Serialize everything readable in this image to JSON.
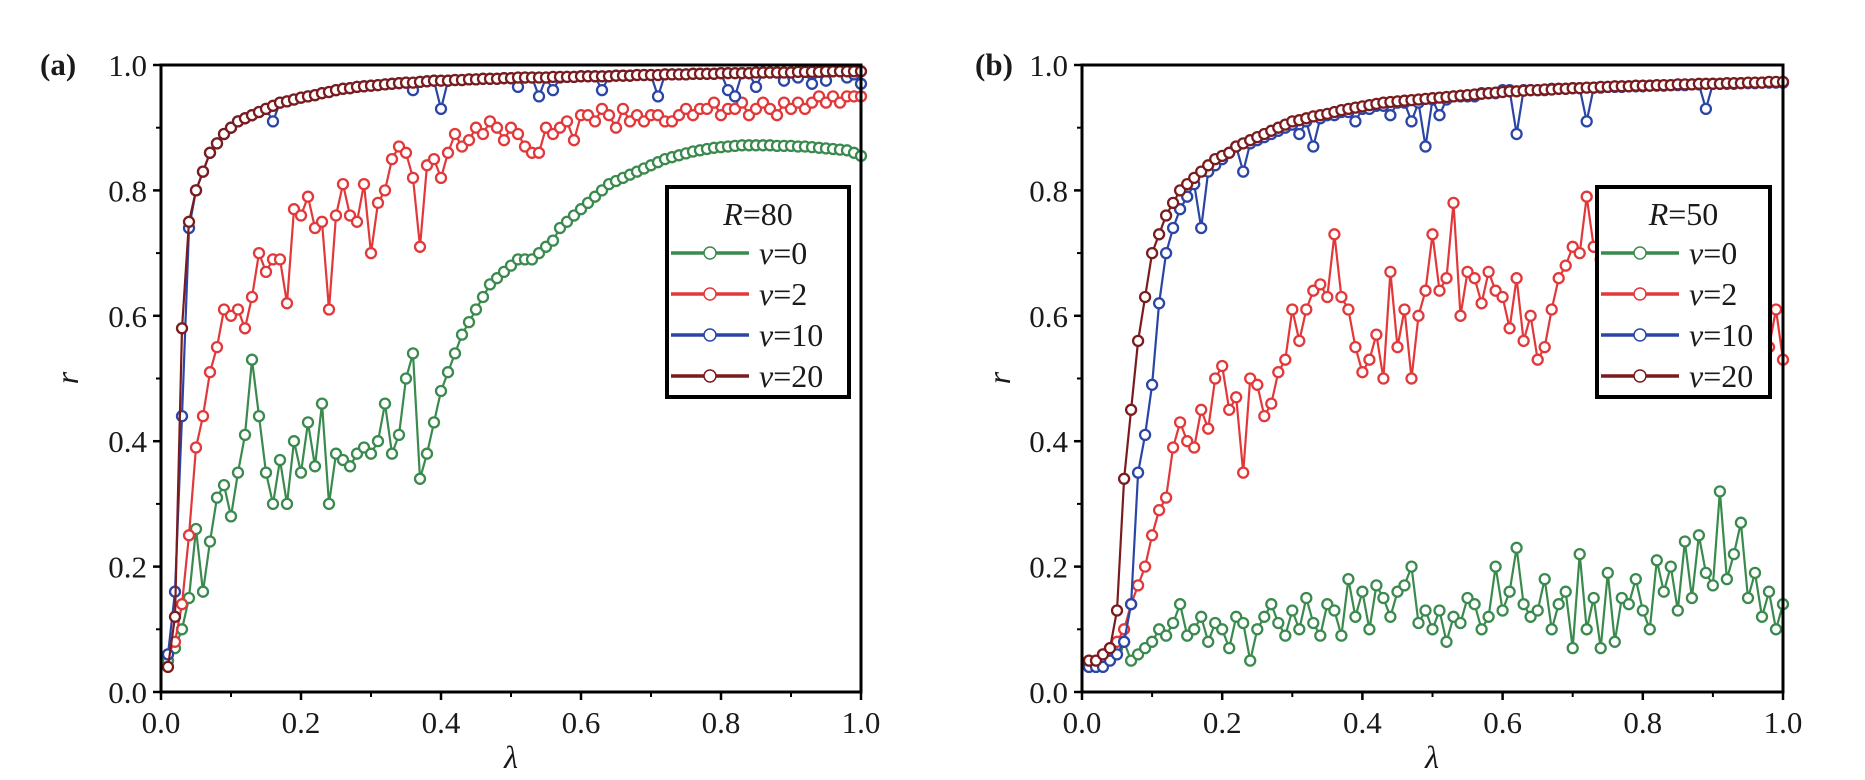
{
  "chart_data": [
    {
      "type": "line",
      "panel_label": "(a)",
      "title": "",
      "xlabel": "λ",
      "ylabel": "r",
      "xlim": [
        0.0,
        1.0
      ],
      "ylim": [
        0.0,
        1.0
      ],
      "xticks": [
        "0.0",
        "0.2",
        "0.4",
        "0.6",
        "0.8",
        "1.0"
      ],
      "yticks": [
        "0.0",
        "0.2",
        "0.4",
        "0.6",
        "0.8",
        "1.0"
      ],
      "grid": false,
      "legend": {
        "title_var": "R",
        "title_value": "=80",
        "placement": "center-right"
      },
      "x_step": 0.01,
      "x_start": 0.01,
      "series": [
        {
          "name": "v=0",
          "var": "v",
          "value": "=0",
          "color": "#3a8a4e",
          "values": [
            0.05,
            0.07,
            0.1,
            0.15,
            0.26,
            0.16,
            0.24,
            0.31,
            0.33,
            0.28,
            0.35,
            0.41,
            0.53,
            0.44,
            0.35,
            0.3,
            0.37,
            0.3,
            0.4,
            0.35,
            0.43,
            0.36,
            0.46,
            0.3,
            0.38,
            0.37,
            0.36,
            0.38,
            0.39,
            0.38,
            0.4,
            0.46,
            0.38,
            0.41,
            0.5,
            0.54,
            0.34,
            0.38,
            0.43,
            0.48,
            0.51,
            0.54,
            0.57,
            0.59,
            0.61,
            0.63,
            0.65,
            0.66,
            0.67,
            0.68,
            0.69,
            0.69,
            0.69,
            0.7,
            0.71,
            0.72,
            0.74,
            0.75,
            0.76,
            0.77,
            0.78,
            0.79,
            0.8,
            0.81,
            0.815,
            0.82,
            0.825,
            0.83,
            0.835,
            0.84,
            0.845,
            0.85,
            0.853,
            0.856,
            0.859,
            0.862,
            0.864,
            0.866,
            0.868,
            0.869,
            0.87,
            0.871,
            0.872,
            0.872,
            0.872,
            0.872,
            0.872,
            0.871,
            0.871,
            0.871,
            0.87,
            0.87,
            0.869,
            0.868,
            0.867,
            0.866,
            0.865,
            0.864,
            0.86,
            0.855
          ]
        },
        {
          "name": "v=2",
          "var": "v",
          "value": "=2",
          "color": "#e2383a",
          "values": [
            0.06,
            0.08,
            0.14,
            0.25,
            0.39,
            0.44,
            0.51,
            0.55,
            0.61,
            0.6,
            0.61,
            0.58,
            0.63,
            0.7,
            0.67,
            0.69,
            0.69,
            0.62,
            0.77,
            0.76,
            0.79,
            0.74,
            0.75,
            0.61,
            0.76,
            0.81,
            0.76,
            0.75,
            0.81,
            0.7,
            0.78,
            0.8,
            0.85,
            0.87,
            0.86,
            0.82,
            0.71,
            0.84,
            0.85,
            0.82,
            0.86,
            0.89,
            0.87,
            0.88,
            0.9,
            0.89,
            0.91,
            0.9,
            0.88,
            0.9,
            0.89,
            0.87,
            0.86,
            0.86,
            0.9,
            0.89,
            0.9,
            0.91,
            0.88,
            0.92,
            0.92,
            0.91,
            0.93,
            0.92,
            0.9,
            0.93,
            0.91,
            0.92,
            0.91,
            0.92,
            0.92,
            0.91,
            0.91,
            0.92,
            0.93,
            0.92,
            0.93,
            0.93,
            0.94,
            0.92,
            0.93,
            0.93,
            0.94,
            0.92,
            0.93,
            0.94,
            0.93,
            0.92,
            0.94,
            0.93,
            0.94,
            0.93,
            0.94,
            0.95,
            0.94,
            0.95,
            0.94,
            0.95,
            0.95,
            0.95
          ]
        },
        {
          "name": "v=10",
          "var": "v",
          "value": "=10",
          "color": "#2b45a6",
          "values": [
            0.06,
            0.16,
            0.44,
            0.74,
            0.8,
            0.83,
            0.86,
            0.875,
            0.89,
            0.9,
            0.91,
            0.915,
            0.92,
            0.925,
            0.93,
            0.91,
            0.94,
            0.942,
            0.945,
            0.948,
            0.95,
            0.952,
            0.955,
            0.957,
            0.96,
            0.962,
            0.963,
            0.965,
            0.966,
            0.967,
            0.968,
            0.969,
            0.97,
            0.971,
            0.972,
            0.96,
            0.973,
            0.974,
            0.975,
            0.93,
            0.975,
            0.976,
            0.976,
            0.977,
            0.977,
            0.978,
            0.978,
            0.978,
            0.979,
            0.979,
            0.965,
            0.98,
            0.98,
            0.95,
            0.98,
            0.96,
            0.98,
            0.981,
            0.981,
            0.982,
            0.982,
            0.982,
            0.96,
            0.982,
            0.983,
            0.983,
            0.983,
            0.984,
            0.984,
            0.984,
            0.95,
            0.985,
            0.985,
            0.985,
            0.985,
            0.986,
            0.986,
            0.986,
            0.986,
            0.987,
            0.96,
            0.95,
            0.987,
            0.987,
            0.965,
            0.988,
            0.988,
            0.988,
            0.975,
            0.988,
            0.98,
            0.989,
            0.97,
            0.989,
            0.975,
            0.99,
            0.99,
            0.98,
            0.985,
            0.97
          ]
        },
        {
          "name": "v=20",
          "var": "v",
          "value": "=20",
          "color": "#7a1c1e",
          "values": [
            0.04,
            0.12,
            0.58,
            0.75,
            0.8,
            0.83,
            0.86,
            0.875,
            0.89,
            0.9,
            0.91,
            0.915,
            0.92,
            0.925,
            0.93,
            0.935,
            0.94,
            0.942,
            0.945,
            0.948,
            0.95,
            0.952,
            0.955,
            0.957,
            0.96,
            0.962,
            0.963,
            0.965,
            0.966,
            0.967,
            0.968,
            0.969,
            0.97,
            0.971,
            0.972,
            0.972,
            0.973,
            0.974,
            0.975,
            0.975,
            0.975,
            0.976,
            0.976,
            0.977,
            0.977,
            0.978,
            0.978,
            0.978,
            0.979,
            0.979,
            0.98,
            0.98,
            0.98,
            0.98,
            0.98,
            0.981,
            0.981,
            0.981,
            0.981,
            0.982,
            0.982,
            0.982,
            0.982,
            0.982,
            0.983,
            0.983,
            0.983,
            0.984,
            0.984,
            0.984,
            0.984,
            0.985,
            0.985,
            0.985,
            0.985,
            0.986,
            0.986,
            0.986,
            0.986,
            0.987,
            0.987,
            0.987,
            0.987,
            0.987,
            0.988,
            0.988,
            0.988,
            0.988,
            0.988,
            0.988,
            0.989,
            0.989,
            0.989,
            0.989,
            0.99,
            0.99,
            0.99,
            0.99,
            0.99,
            0.99
          ]
        }
      ]
    },
    {
      "type": "line",
      "panel_label": "(b)",
      "title": "",
      "xlabel": "λ",
      "ylabel": "r",
      "xlim": [
        0.0,
        1.0
      ],
      "ylim": [
        0.0,
        1.0
      ],
      "xticks": [
        "0.0",
        "0.2",
        "0.4",
        "0.6",
        "0.8",
        "1.0"
      ],
      "yticks": [
        "0.0",
        "0.2",
        "0.4",
        "0.6",
        "0.8",
        "1.0"
      ],
      "grid": false,
      "legend": {
        "title_var": "R",
        "title_value": "=50",
        "placement": "center-right"
      },
      "x_step": 0.01,
      "x_start": 0.01,
      "series": [
        {
          "name": "v=0",
          "var": "v",
          "value": "=0",
          "color": "#3a8a4e",
          "values": [
            0.04,
            0.04,
            0.05,
            0.06,
            0.07,
            0.08,
            0.05,
            0.06,
            0.07,
            0.08,
            0.1,
            0.09,
            0.11,
            0.14,
            0.09,
            0.1,
            0.12,
            0.08,
            0.11,
            0.1,
            0.07,
            0.12,
            0.11,
            0.05,
            0.1,
            0.12,
            0.14,
            0.11,
            0.09,
            0.13,
            0.1,
            0.15,
            0.11,
            0.09,
            0.14,
            0.13,
            0.09,
            0.18,
            0.12,
            0.16,
            0.1,
            0.17,
            0.15,
            0.12,
            0.16,
            0.17,
            0.2,
            0.11,
            0.13,
            0.1,
            0.13,
            0.08,
            0.12,
            0.11,
            0.15,
            0.14,
            0.1,
            0.12,
            0.2,
            0.13,
            0.16,
            0.23,
            0.14,
            0.12,
            0.13,
            0.18,
            0.1,
            0.14,
            0.16,
            0.07,
            0.22,
            0.1,
            0.15,
            0.07,
            0.19,
            0.08,
            0.15,
            0.14,
            0.18,
            0.13,
            0.1,
            0.21,
            0.16,
            0.2,
            0.13,
            0.24,
            0.15,
            0.25,
            0.19,
            0.17,
            0.32,
            0.18,
            0.22,
            0.27,
            0.15,
            0.19,
            0.12,
            0.16,
            0.1,
            0.14
          ]
        },
        {
          "name": "v=2",
          "var": "v",
          "value": "=2",
          "color": "#e2383a",
          "values": [
            0.05,
            0.05,
            0.06,
            0.07,
            0.08,
            0.1,
            0.14,
            0.17,
            0.2,
            0.25,
            0.29,
            0.31,
            0.39,
            0.43,
            0.4,
            0.39,
            0.45,
            0.42,
            0.5,
            0.52,
            0.45,
            0.47,
            0.35,
            0.5,
            0.49,
            0.44,
            0.46,
            0.51,
            0.53,
            0.61,
            0.56,
            0.61,
            0.64,
            0.65,
            0.63,
            0.73,
            0.63,
            0.61,
            0.55,
            0.51,
            0.53,
            0.57,
            0.5,
            0.67,
            0.55,
            0.61,
            0.5,
            0.6,
            0.64,
            0.73,
            0.64,
            0.66,
            0.78,
            0.6,
            0.67,
            0.66,
            0.62,
            0.67,
            0.64,
            0.63,
            0.58,
            0.66,
            0.56,
            0.6,
            0.53,
            0.55,
            0.61,
            0.66,
            0.68,
            0.71,
            0.7,
            0.79,
            0.71,
            0.69,
            0.66,
            0.64,
            0.62,
            0.63,
            0.6,
            0.61,
            0.6,
            0.62,
            0.59,
            0.6,
            0.58,
            0.57,
            0.55,
            0.56,
            0.58,
            0.57,
            0.55,
            0.54,
            0.56,
            0.6,
            0.57,
            0.56,
            0.62,
            0.55,
            0.61,
            0.53
          ]
        },
        {
          "name": "v=10",
          "var": "v",
          "value": "=10",
          "color": "#2b45a6",
          "values": [
            0.04,
            0.04,
            0.04,
            0.05,
            0.06,
            0.08,
            0.14,
            0.35,
            0.41,
            0.49,
            0.62,
            0.7,
            0.74,
            0.77,
            0.79,
            0.81,
            0.74,
            0.83,
            0.84,
            0.85,
            0.86,
            0.87,
            0.83,
            0.875,
            0.88,
            0.885,
            0.89,
            0.895,
            0.9,
            0.905,
            0.89,
            0.91,
            0.87,
            0.915,
            0.92,
            0.92,
            0.925,
            0.925,
            0.91,
            0.93,
            0.93,
            0.935,
            0.935,
            0.92,
            0.94,
            0.94,
            0.91,
            0.94,
            0.87,
            0.945,
            0.92,
            0.945,
            0.95,
            0.95,
            0.95,
            0.95,
            0.955,
            0.955,
            0.955,
            0.96,
            0.96,
            0.89,
            0.96,
            0.96,
            0.96,
            0.96,
            0.962,
            0.962,
            0.962,
            0.963,
            0.963,
            0.91,
            0.964,
            0.964,
            0.965,
            0.965,
            0.965,
            0.966,
            0.966,
            0.966,
            0.967,
            0.967,
            0.967,
            0.968,
            0.968,
            0.968,
            0.969,
            0.969,
            0.93,
            0.97,
            0.97,
            0.97,
            0.97,
            0.971,
            0.971,
            0.971,
            0.972,
            0.972,
            0.972,
            0.972
          ]
        },
        {
          "name": "v=20",
          "var": "v",
          "value": "=20",
          "color": "#7a1c1e",
          "values": [
            0.05,
            0.05,
            0.06,
            0.07,
            0.13,
            0.34,
            0.45,
            0.56,
            0.63,
            0.7,
            0.73,
            0.76,
            0.78,
            0.8,
            0.81,
            0.82,
            0.83,
            0.84,
            0.85,
            0.855,
            0.86,
            0.87,
            0.875,
            0.88,
            0.885,
            0.89,
            0.895,
            0.9,
            0.905,
            0.91,
            0.912,
            0.915,
            0.918,
            0.92,
            0.922,
            0.925,
            0.928,
            0.93,
            0.932,
            0.934,
            0.936,
            0.938,
            0.94,
            0.941,
            0.942,
            0.943,
            0.944,
            0.945,
            0.946,
            0.947,
            0.948,
            0.949,
            0.95,
            0.951,
            0.952,
            0.953,
            0.954,
            0.955,
            0.956,
            0.957,
            0.958,
            0.958,
            0.959,
            0.96,
            0.96,
            0.961,
            0.961,
            0.962,
            0.962,
            0.963,
            0.963,
            0.964,
            0.964,
            0.965,
            0.965,
            0.966,
            0.966,
            0.966,
            0.967,
            0.967,
            0.967,
            0.968,
            0.968,
            0.968,
            0.969,
            0.969,
            0.969,
            0.97,
            0.97,
            0.97,
            0.97,
            0.971,
            0.971,
            0.971,
            0.972,
            0.972,
            0.972,
            0.973,
            0.973,
            0.973
          ]
        }
      ]
    }
  ]
}
